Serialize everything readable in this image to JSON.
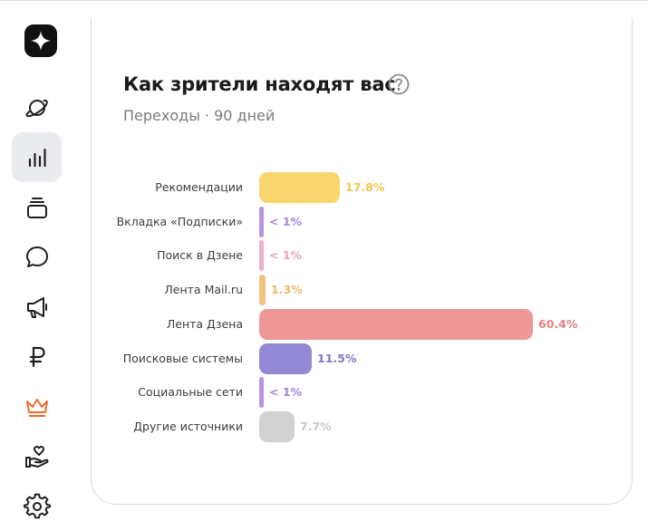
{
  "sidebar": {
    "logo_icon": "star-sparkle-icon",
    "items": [
      {
        "icon": "planet-icon",
        "active": false
      },
      {
        "icon": "bar-chart-icon",
        "active": true
      },
      {
        "icon": "stack-icon",
        "active": false
      },
      {
        "icon": "chat-bubble-icon",
        "active": false
      },
      {
        "icon": "megaphone-icon",
        "active": false
      },
      {
        "icon": "ruble-icon",
        "active": false
      },
      {
        "icon": "crown-icon",
        "active": false,
        "color": "#f06a2c"
      },
      {
        "icon": "hand-heart-icon",
        "active": false
      },
      {
        "icon": "gear-icon",
        "active": false
      }
    ]
  },
  "card": {
    "title": "Как зрители находят вас",
    "subtitle": "Переходы · 90 дней"
  },
  "chart_data": {
    "type": "bar",
    "orientation": "horizontal",
    "categories": [
      "Рекомендации",
      "Вкладка «Подписки»",
      "Поиск в Дзене",
      "Лента Mail.ru",
      "Лента Дзена",
      "Поисковые системы",
      "Социальные сети",
      "Другие источники"
    ],
    "values": [
      17.8,
      0.5,
      0.5,
      1.3,
      60.4,
      11.5,
      0.5,
      7.7
    ],
    "value_labels": [
      "17.8%",
      "< 1%",
      "< 1%",
      "1.3%",
      "60.4%",
      "11.5%",
      "< 1%",
      "7.7%"
    ],
    "colors": [
      "#f9d56e",
      "#b796e0",
      "#eeb0cf",
      "#f3c37d",
      "#ef9796",
      "#9288d6",
      "#b796e0",
      "#d2d2d2"
    ],
    "label_colors": [
      "#f2c84b",
      "#a884d6",
      "#e8a2c2",
      "#f0b868",
      "#e5807f",
      "#7f76c9",
      "#a884d6",
      "#c8c8c8"
    ],
    "xlim": [
      0,
      60.4
    ]
  }
}
